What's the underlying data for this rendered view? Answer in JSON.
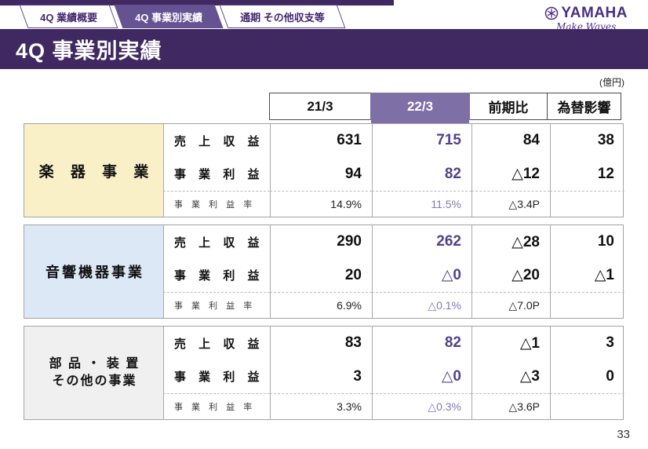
{
  "tabs": {
    "items": [
      {
        "label": "4Q 業績概要",
        "active": false
      },
      {
        "label": "4Q 事業別実績",
        "active": true
      },
      {
        "label": "通期 その他収支等",
        "active": false
      }
    ]
  },
  "logo": {
    "brand": "YAMAHA",
    "tagline": "Make Waves",
    "color": "#4b2e83"
  },
  "header": {
    "title": "4Q 事業別実績"
  },
  "unit_label": "(億円)",
  "table": {
    "columns": [
      "21/3",
      "22/3",
      "前期比",
      "為替影響"
    ],
    "highlight_column": "22/3",
    "groups": [
      {
        "name_lines": [
          "楽 器 事 業"
        ],
        "bg": "#faf0c8",
        "rows": [
          {
            "label": "売 上 収 益",
            "values": [
              "631",
              "715",
              "84",
              "38"
            ]
          },
          {
            "label": "事 業 利 益",
            "values": [
              "94",
              "82",
              "△12",
              "12"
            ]
          },
          {
            "label": "事 業 利 益 率",
            "values": [
              "14.9%",
              "11.5%",
              "△3.4P",
              ""
            ],
            "is_rate": true
          }
        ]
      },
      {
        "name_lines": [
          "音響機器事業"
        ],
        "bg": "#dce8f5",
        "rows": [
          {
            "label": "売 上 収 益",
            "values": [
              "290",
              "262",
              "△28",
              "10"
            ]
          },
          {
            "label": "事 業 利 益",
            "values": [
              "20",
              "△0",
              "△20",
              "△1"
            ]
          },
          {
            "label": "事 業 利 益 率",
            "values": [
              "6.9%",
              "△0.1%",
              "△7.0P",
              ""
            ],
            "is_rate": true
          }
        ]
      },
      {
        "name_lines": [
          "部 品 ・ 装 置",
          "その他の事業"
        ],
        "bg": "#f0f0f0",
        "rows": [
          {
            "label": "売 上 収 益",
            "values": [
              "83",
              "82",
              "△1",
              "3"
            ]
          },
          {
            "label": "事 業 利 益",
            "values": [
              "3",
              "△0",
              "△3",
              "0"
            ]
          },
          {
            "label": "事 業 利 益 率",
            "values": [
              "3.3%",
              "△0.3%",
              "△3.6P",
              ""
            ],
            "is_rate": true
          }
        ]
      }
    ]
  },
  "colors": {
    "brand_purple": "#402961",
    "active_tab_purple": "#645293",
    "highlight_header_purple": "#7e6fa6",
    "highlight_value_purple": "#53418e",
    "instrument_bg": "#faf0c8",
    "audio_bg": "#dce8f5",
    "parts_bg": "#f0f0f0"
  },
  "footer": {
    "page_number": "33"
  }
}
